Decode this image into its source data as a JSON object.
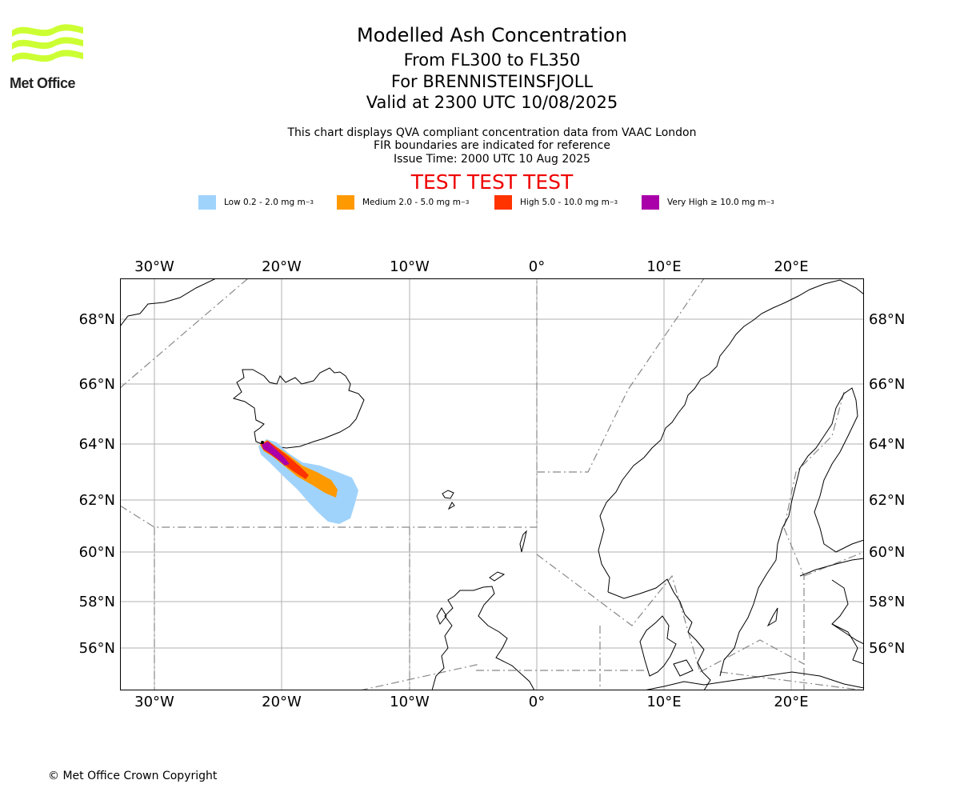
{
  "logo": {
    "text": "Met Office",
    "color": "#ccff33"
  },
  "title": "Modelled Ash Concentration",
  "flight_levels": "From FL300 to FL350",
  "volcano": "For BRENNISTEINSFJOLL",
  "valid_time": "Valid at 2300 UTC 10/08/2025",
  "subtitle_lines": [
    "This chart displays QVA compliant concentration data from VAAC London",
    "FIR boundaries are indicated for reference",
    "Issue Time: 2000 UTC 10 Aug 2025"
  ],
  "test_banner": {
    "text": "TEST TEST TEST",
    "color": "#ee0000"
  },
  "legend": [
    {
      "label": "Low 0.2 - 2.0 mg m",
      "unit_exp": "−3",
      "color": "#a0d3fc"
    },
    {
      "label": "Medium 2.0 - 5.0 mg m",
      "unit_exp": "−3",
      "color": "#ff9900"
    },
    {
      "label": "High 5.0 - 10.0 mg m",
      "unit_exp": "−3",
      "color": "#ff3300"
    },
    {
      "label": "Very High  ≥  10.0 mg m",
      "unit_exp": "−3",
      "color": "#aa00aa"
    }
  ],
  "map": {
    "lon_ticks": [
      "30°W",
      "20°W",
      "10°W",
      "0°",
      "10°E",
      "20°E"
    ],
    "lat_ticks": [
      "68°N",
      "66°N",
      "64°N",
      "62°N",
      "60°N",
      "58°N",
      "56°N"
    ],
    "gridlines": true,
    "fir_boundaries": true
  },
  "copyright": "© Met Office Crown Copyright"
}
